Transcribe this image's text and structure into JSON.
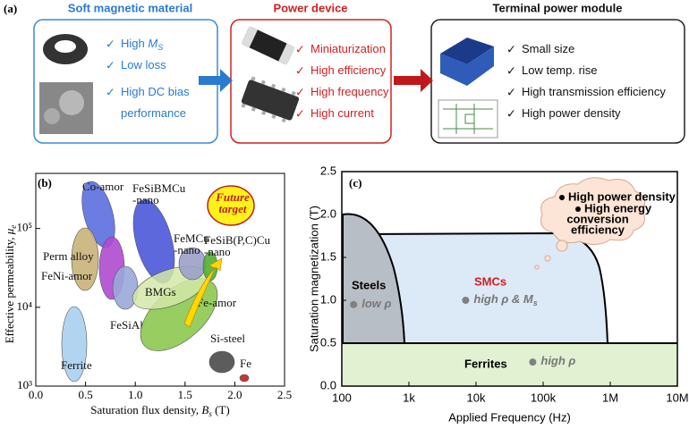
{
  "panel_a": {
    "label": "(a)",
    "boxes": [
      {
        "title": "Soft magnetic material",
        "items": [
          {
            "text": "High ",
            "symbol": "M",
            "subscript": "S"
          },
          {
            "text": "Low loss"
          },
          {
            "text": "High DC bias"
          },
          {
            "text": "performance"
          }
        ]
      },
      {
        "title": "Power device",
        "items": [
          {
            "text": "Miniaturization"
          },
          {
            "text": "High efficiency"
          },
          {
            "text": "High frequency"
          },
          {
            "text": "High current"
          }
        ]
      },
      {
        "title": "Terminal power module",
        "items": [
          {
            "text": "Small size"
          },
          {
            "text": "Low temp. rise"
          },
          {
            "text": "High transmission efficiency"
          },
          {
            "text": "High power density"
          }
        ]
      }
    ]
  },
  "chart_data": [
    {
      "type": "region",
      "panel_label": "(b)",
      "x_label": {
        "text": "Saturation flux density, ",
        "symbol": "B",
        "subscript": "s",
        "unit": " (T)"
      },
      "y_label": {
        "text": "Effective permeability, ",
        "symbol": "μ",
        "subscript": "e"
      },
      "xlim": [
        0,
        2.5
      ],
      "xticks": [
        {
          "value": 0,
          "label": "0.0"
        },
        0.5,
        {
          "value": 1,
          "label": "1.0"
        },
        1.5,
        {
          "value": 2,
          "label": "2.0"
        },
        2.5
      ],
      "ylim": [
        1000,
        500000
      ],
      "log_y": true,
      "yticks": [
        {
          "value": 1000,
          "label": "10³"
        },
        {
          "value": 10000,
          "label": "10⁴"
        },
        {
          "value": 100000,
          "label": "10⁵"
        }
      ],
      "regions": [
        {
          "name": [
            "Co-amor"
          ]
        },
        {
          "name": [
            "Perm alloy"
          ]
        },
        {
          "name": [
            "FeNi-amor"
          ]
        },
        {
          "name": [
            "FeSiBMCu",
            "-nano"
          ]
        },
        {
          "name": [
            "Ferrite"
          ]
        },
        {
          "name": [
            "FeSiAl"
          ]
        },
        {
          "name": [
            "Fe-amor"
          ]
        },
        {
          "name": [
            "BMGs"
          ]
        },
        {
          "name": [
            "FeMCu",
            "-nano"
          ]
        },
        {
          "name": [
            "FeSiB(P,C)Cu",
            "-nano"
          ]
        },
        {
          "name": [
            "Si-steel"
          ]
        },
        {
          "name": [
            "Fe"
          ]
        },
        {
          "name": [
            "Future",
            "target"
          ]
        }
      ]
    },
    {
      "type": "scatter",
      "panel_label": "(c)",
      "x_label": "Applied Frequency (Hz)",
      "y_label": "Saturation magnetization (T)",
      "xlim": [
        100,
        10000000
      ],
      "log_x": true,
      "xticks": [
        100,
        {
          "value": 1000,
          "label": "1k"
        },
        {
          "value": 10000,
          "label": "10k"
        },
        {
          "value": 100000,
          "label": "100k"
        },
        {
          "value": 1000000,
          "label": "1M"
        },
        {
          "value": 10000000,
          "label": "10M"
        }
      ],
      "ylim": [
        0,
        2.5
      ],
      "yticks": [
        {
          "value": 0,
          "label": "0.0"
        },
        0.5,
        {
          "value": 1,
          "label": "1.0"
        },
        1.5,
        {
          "value": 2,
          "label": "2.0"
        },
        2.5
      ],
      "regions": [
        "Steels",
        "SMCs",
        "Ferrites"
      ],
      "color": "#808080",
      "x": [
        150,
        7000,
        70000
      ],
      "values": [
        0.95,
        1.0,
        0.28
      ],
      "point_labels": [
        {
          "text": "low ρ"
        },
        {
          "text": "high ρ & ",
          "symbol": "M",
          "subscript": "s"
        },
        {
          "text": "high ρ"
        }
      ],
      "cloud": [
        "High power density",
        "High energy",
        "conversion",
        "efficiency"
      ]
    }
  ]
}
